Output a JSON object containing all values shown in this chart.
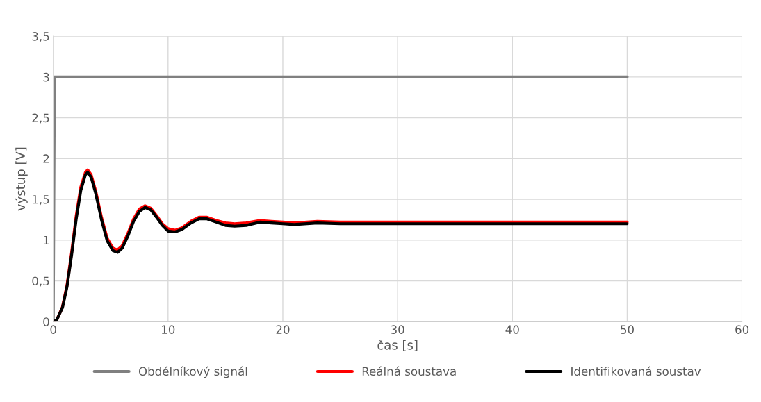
{
  "chart_data": {
    "type": "line",
    "xlabel": "čas [s]",
    "ylabel": "výstup [V]",
    "xlim": [
      0,
      60
    ],
    "xticks": [
      0,
      10,
      20,
      30,
      40,
      50,
      60
    ],
    "ylim": [
      0,
      3.5
    ],
    "yticks": [
      0,
      {
        "value": 0.5,
        "label": "0,5"
      },
      1,
      {
        "value": 1.5,
        "label": "1,5"
      },
      2,
      {
        "value": 2.5,
        "label": "2,5"
      },
      3,
      {
        "value": 3.5,
        "label": "3,5"
      }
    ],
    "grid": true,
    "legend": "bottom",
    "marker": "none",
    "line_style": "solid",
    "series": [
      {
        "name": "Obdélníkový signál",
        "color": "#808080",
        "x": [
          0,
          0.1,
          50
        ],
        "values": [
          0,
          3,
          3
        ]
      },
      {
        "name": "Reálná soustava",
        "color": "#ff0000",
        "x": [
          0,
          0.3,
          0.8,
          1.2,
          1.6,
          2.0,
          2.4,
          2.8,
          3.0,
          3.3,
          3.7,
          4.2,
          4.7,
          5.2,
          5.6,
          6.0,
          6.5,
          7.0,
          7.5,
          8.0,
          8.5,
          9.0,
          9.5,
          10.0,
          10.6,
          11.2,
          12.0,
          12.7,
          13.4,
          14.2,
          15.0,
          15.8,
          16.8,
          18.0,
          19.0,
          20.0,
          21.0,
          23,
          25,
          30,
          40,
          50
        ],
        "values": [
          0,
          0.02,
          0.18,
          0.45,
          0.85,
          1.3,
          1.65,
          1.83,
          1.86,
          1.8,
          1.6,
          1.28,
          1.02,
          0.9,
          0.88,
          0.93,
          1.08,
          1.26,
          1.38,
          1.42,
          1.39,
          1.3,
          1.2,
          1.14,
          1.12,
          1.15,
          1.23,
          1.28,
          1.28,
          1.24,
          1.21,
          1.2,
          1.21,
          1.24,
          1.23,
          1.22,
          1.21,
          1.23,
          1.22,
          1.22,
          1.22,
          1.22
        ]
      },
      {
        "name": "Identifikovaná soustav",
        "color": "#000000",
        "x": [
          0,
          0.3,
          0.8,
          1.2,
          1.6,
          2.0,
          2.4,
          2.8,
          3.0,
          3.3,
          3.7,
          4.2,
          4.7,
          5.2,
          5.6,
          6.0,
          6.5,
          7.0,
          7.5,
          8.0,
          8.5,
          9.0,
          9.5,
          10.0,
          10.6,
          11.2,
          12.0,
          12.7,
          13.4,
          14.2,
          15.0,
          15.8,
          16.8,
          18.0,
          19.0,
          20.0,
          21.0,
          23,
          25,
          30,
          40,
          50
        ],
        "values": [
          0,
          0.02,
          0.17,
          0.43,
          0.82,
          1.26,
          1.61,
          1.8,
          1.83,
          1.77,
          1.57,
          1.25,
          0.99,
          0.87,
          0.85,
          0.9,
          1.05,
          1.23,
          1.35,
          1.4,
          1.37,
          1.28,
          1.18,
          1.11,
          1.1,
          1.13,
          1.21,
          1.26,
          1.26,
          1.22,
          1.18,
          1.17,
          1.18,
          1.22,
          1.21,
          1.2,
          1.19,
          1.21,
          1.2,
          1.2,
          1.2,
          1.2
        ]
      }
    ]
  }
}
